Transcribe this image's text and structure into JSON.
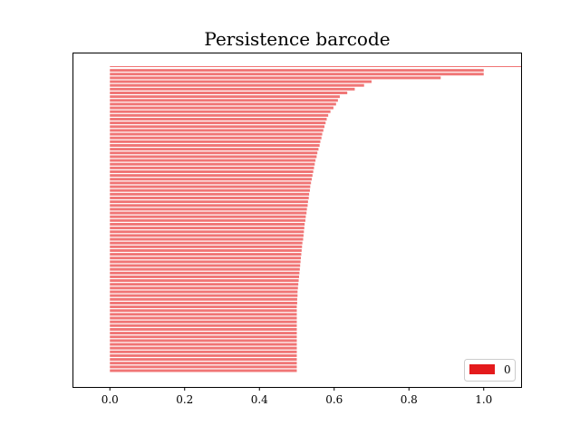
{
  "chart_data": {
    "type": "bar",
    "orientation": "horizontal",
    "title": "Persistence barcode",
    "xlabel": "",
    "ylabel": "",
    "xlim": [
      -0.1,
      1.1
    ],
    "x_ticks": [
      "0.0",
      "0.2",
      "0.4",
      "0.6",
      "0.8",
      "1.0"
    ],
    "x_tick_values": [
      0.0,
      0.2,
      0.4,
      0.6,
      0.8,
      1.0
    ],
    "y_ticks_visible": false,
    "grid": false,
    "bar_color": "#F07575",
    "legend": {
      "placement": "lower-right",
      "entries": [
        {
          "label": "0",
          "color": "#E41A1C"
        }
      ]
    },
    "series": [
      {
        "name": "0",
        "intervals": [
          [
            0,
            "inf"
          ],
          [
            0,
            1.0
          ],
          [
            0,
            1.0
          ],
          [
            0,
            0.885
          ],
          [
            0,
            0.7
          ],
          [
            0,
            0.68
          ],
          [
            0,
            0.655
          ],
          [
            0,
            0.635
          ],
          [
            0,
            0.615
          ],
          [
            0,
            0.61
          ],
          [
            0,
            0.605
          ],
          [
            0,
            0.598
          ],
          [
            0,
            0.59
          ],
          [
            0,
            0.584
          ],
          [
            0,
            0.58
          ],
          [
            0,
            0.577
          ],
          [
            0,
            0.574
          ],
          [
            0,
            0.571
          ],
          [
            0,
            0.568
          ],
          [
            0,
            0.566
          ],
          [
            0,
            0.563
          ],
          [
            0,
            0.561
          ],
          [
            0,
            0.558
          ],
          [
            0,
            0.555
          ],
          [
            0,
            0.553
          ],
          [
            0,
            0.55
          ],
          [
            0,
            0.548
          ],
          [
            0,
            0.546
          ],
          [
            0,
            0.544
          ],
          [
            0,
            0.542
          ],
          [
            0,
            0.54
          ],
          [
            0,
            0.538
          ],
          [
            0,
            0.536
          ],
          [
            0,
            0.535
          ],
          [
            0,
            0.533
          ],
          [
            0,
            0.532
          ],
          [
            0,
            0.53
          ],
          [
            0,
            0.529
          ],
          [
            0,
            0.527
          ],
          [
            0,
            0.526
          ],
          [
            0,
            0.524
          ],
          [
            0,
            0.523
          ],
          [
            0,
            0.521
          ],
          [
            0,
            0.52
          ],
          [
            0,
            0.519
          ],
          [
            0,
            0.518
          ],
          [
            0,
            0.517
          ],
          [
            0,
            0.515
          ],
          [
            0,
            0.514
          ],
          [
            0,
            0.513
          ],
          [
            0,
            0.512
          ],
          [
            0,
            0.511
          ],
          [
            0,
            0.51
          ],
          [
            0,
            0.509
          ],
          [
            0,
            0.508
          ],
          [
            0,
            0.507
          ],
          [
            0,
            0.506
          ],
          [
            0,
            0.505
          ],
          [
            0,
            0.504
          ],
          [
            0,
            0.503
          ],
          [
            0,
            0.502
          ],
          [
            0,
            0.502
          ],
          [
            0,
            0.501
          ],
          [
            0,
            0.501
          ],
          [
            0,
            0.5
          ],
          [
            0,
            0.5
          ],
          [
            0,
            0.5
          ],
          [
            0,
            0.5
          ],
          [
            0,
            0.5
          ],
          [
            0,
            0.5
          ],
          [
            0,
            0.5
          ],
          [
            0,
            0.5
          ],
          [
            0,
            0.5
          ],
          [
            0,
            0.5
          ],
          [
            0,
            0.5
          ],
          [
            0,
            0.5
          ],
          [
            0,
            0.5
          ],
          [
            0,
            0.5
          ],
          [
            0,
            0.5
          ],
          [
            0,
            0.5
          ],
          [
            0,
            0.5
          ],
          [
            0,
            0.5
          ]
        ]
      }
    ]
  }
}
